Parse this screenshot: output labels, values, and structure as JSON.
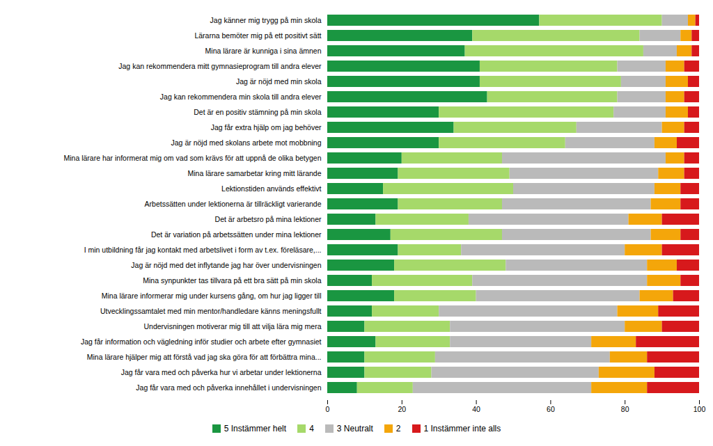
{
  "chart_data": {
    "type": "bar",
    "orientation": "horizontal",
    "stacked": true,
    "categories": [
      "Jag känner mig trygg på min skola",
      "Lärarna bemöter mig på ett positivt sätt",
      "Mina lärare är kunniga i sina ämnen",
      "Jag kan rekommendera mitt gymnasieprogram till andra elever",
      "Jag är nöjd med min skola",
      "Jag kan rekommendera min skola till andra elever",
      "Det är en positiv stämning på min skola",
      "Jag får extra hjälp om jag behöver",
      "Jag är nöjd med skolans arbete mot mobbning",
      "Mina lärare har informerat mig om vad som krävs för att uppnå de olika betygen",
      "Mina lärare samarbetar kring mitt lärande",
      "Lektionstiden används effektivt",
      "Arbetssätten under lektionerna är tillräckligt varierande",
      "Det är arbetsro på mina lektioner",
      "Det är variation på arbetssätten under mina lektioner",
      "I min utbildning får jag kontakt med arbetslivet i form av t.ex. föreläsare,...",
      "Jag är nöjd med det inflytande jag har över undervisningen",
      "Mina synpunkter tas tillvara på ett bra sätt på min skola",
      "Mina lärare informerar mig under kursens gång, om hur jag ligger till",
      "Utvecklingssamtalet med min mentor/handledare känns meningsfullt",
      "Undervisningen motiverar mig till att vilja lära mig mera",
      "Jag får information och vägledning inför studier och arbete efter gymnasiet",
      "Mina lärare hjälper mig att förstå vad jag ska göra för att förbättra mina...",
      "Jag får vara med och påverka hur vi arbetar under lektionerna",
      "Jag får vara med och påverka innehållet i undervisningen"
    ],
    "series": [
      {
        "name": "5 Instämmer helt",
        "color": "#1a9641",
        "values": [
          57,
          39,
          37,
          41,
          41,
          43,
          30,
          34,
          30,
          20,
          19,
          15,
          19,
          13,
          17,
          19,
          18,
          12,
          18,
          12,
          10,
          13,
          10,
          10,
          8
        ]
      },
      {
        "name": "4",
        "color": "#a6d96a",
        "values": [
          33,
          45,
          48,
          37,
          38,
          35,
          47,
          33,
          34,
          27,
          30,
          35,
          28,
          25,
          30,
          17,
          30,
          27,
          22,
          18,
          23,
          20,
          19,
          18,
          15
        ]
      },
      {
        "name": "3 Neutralt",
        "color": "#bababa",
        "values": [
          7,
          11,
          9,
          13,
          12,
          13,
          14,
          23,
          24,
          44,
          40,
          38,
          40,
          43,
          40,
          44,
          38,
          47,
          44,
          48,
          47,
          38,
          47,
          45,
          48
        ]
      },
      {
        "name": "2",
        "color": "#f4a60a",
        "values": [
          2,
          3,
          4,
          5,
          6,
          5,
          6,
          6,
          6,
          5,
          7,
          7,
          8,
          9,
          8,
          10,
          8,
          9,
          9,
          11,
          10,
          12,
          10,
          15,
          15
        ]
      },
      {
        "name": "1 Instämmer inte alls",
        "color": "#d7191c",
        "values": [
          1,
          2,
          2,
          4,
          3,
          4,
          3,
          4,
          6,
          4,
          4,
          5,
          5,
          10,
          5,
          10,
          6,
          5,
          7,
          11,
          10,
          17,
          14,
          12,
          14
        ]
      }
    ],
    "xlim": [
      0,
      100
    ],
    "xticks": [
      0,
      20,
      40,
      60,
      80,
      100
    ],
    "grid": false,
    "legend": "bottom"
  }
}
